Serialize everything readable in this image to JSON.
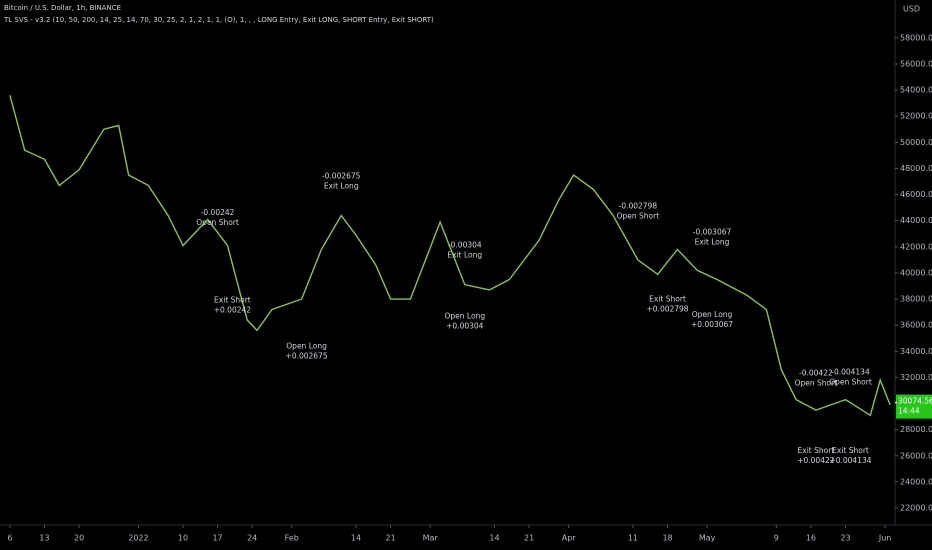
{
  "chart_data": {
    "type": "line",
    "title": "Bitcoin / U.S. Dollar, 1h, BINANCE",
    "subtitle": "TL SVS - v3.2 (10, 50, 200, 14, 25, 14, 70, 30, 25, 2, 1, 2, 1, 1, (O), 1, , , LONG Entry, Exit LONG, SHORT Entry, Exit SHORT)",
    "currency": "USD",
    "color": "#8bc34a",
    "x": [
      0,
      3,
      7,
      10,
      14,
      19,
      22,
      24,
      28,
      32,
      35,
      40,
      44,
      48,
      50,
      53,
      59,
      63,
      67,
      70,
      74,
      77,
      81,
      87,
      92,
      97,
      101,
      107,
      111,
      114,
      118,
      122,
      127,
      131,
      135,
      139,
      143,
      149,
      153,
      156,
      159,
      163,
      169,
      174,
      176,
      178
    ],
    "values": [
      53600,
      49400,
      48700,
      46700,
      47900,
      51000,
      51300,
      47500,
      46700,
      44400,
      42100,
      44100,
      42100,
      36400,
      35600,
      37200,
      38000,
      41800,
      44400,
      42900,
      40600,
      38000,
      38000,
      43900,
      39100,
      38700,
      39500,
      42500,
      45600,
      47500,
      46400,
      44400,
      41000,
      39900,
      41800,
      40200,
      39500,
      38300,
      37200,
      32600,
      30300,
      29500,
      30300,
      29100,
      31800,
      29900
    ],
    "xlim": [
      -2,
      179
    ],
    "xticks": [
      {
        "value": 0,
        "label": "6"
      },
      {
        "value": 7,
        "label": "13"
      },
      {
        "value": 14,
        "label": "20"
      },
      {
        "value": 26,
        "label": "2022"
      },
      {
        "value": 35,
        "label": "10"
      },
      {
        "value": 42,
        "label": "17"
      },
      {
        "value": 49,
        "label": "24"
      },
      {
        "value": 57,
        "label": "Feb"
      },
      {
        "value": 70,
        "label": "14"
      },
      {
        "value": 77,
        "label": "21"
      },
      {
        "value": 85,
        "label": "Mar"
      },
      {
        "value": 98,
        "label": "14"
      },
      {
        "value": 105,
        "label": "21"
      },
      {
        "value": 113,
        "label": "Apr"
      },
      {
        "value": 126,
        "label": "11"
      },
      {
        "value": 133,
        "label": "18"
      },
      {
        "value": 141,
        "label": "May"
      },
      {
        "value": 155,
        "label": "9"
      },
      {
        "value": 162,
        "label": "16"
      },
      {
        "value": 169,
        "label": "23"
      },
      {
        "value": 177,
        "label": "Jun"
      }
    ],
    "ylim": [
      20700,
      60900
    ],
    "yticks": [
      {
        "value": 22000,
        "label": "22000.00"
      },
      {
        "value": 24000,
        "label": "24000.00"
      },
      {
        "value": 26000,
        "label": "26000.00"
      },
      {
        "value": 28000,
        "label": "28000.00"
      },
      {
        "value": 30000,
        "label": "30000.00"
      },
      {
        "value": 32000,
        "label": "32000.00"
      },
      {
        "value": 34000,
        "label": "34000.00"
      },
      {
        "value": 36000,
        "label": "36000.00"
      },
      {
        "value": 38000,
        "label": "38000.00"
      },
      {
        "value": 40000,
        "label": "40000.00"
      },
      {
        "value": 42000,
        "label": "42000.00"
      },
      {
        "value": 44000,
        "label": "44000.00"
      },
      {
        "value": 46000,
        "label": "46000.00"
      },
      {
        "value": 48000,
        "label": "48000.00"
      },
      {
        "value": 50000,
        "label": "50000.00"
      },
      {
        "value": 52000,
        "label": "52000.00"
      },
      {
        "value": 54000,
        "label": "54000.00"
      },
      {
        "value": 56000,
        "label": "56000.00"
      },
      {
        "value": 58000,
        "label": "58000.00"
      }
    ],
    "last_price": {
      "value": 30074.56,
      "label": "30074.56"
    },
    "countdown": "14:44",
    "annotations": [
      {
        "x": 42,
        "y": 44200,
        "lines": [
          "-0.00242",
          "Open Short"
        ]
      },
      {
        "x": 45,
        "y": 37500,
        "lines": [
          "Exit Short",
          "+0.00242"
        ]
      },
      {
        "x": 60,
        "y": 34000,
        "lines": [
          "Open Long",
          "+0.002675"
        ]
      },
      {
        "x": 67,
        "y": 47000,
        "lines": [
          "-0.002675",
          "Exit Long"
        ]
      },
      {
        "x": 92,
        "y": 41700,
        "lines": [
          "-0.00304",
          "Exit Long"
        ]
      },
      {
        "x": 92,
        "y": 36300,
        "lines": [
          "Open Long",
          "+0.00304"
        ]
      },
      {
        "x": 127,
        "y": 44700,
        "lines": [
          "-0.002798",
          "Open Short"
        ]
      },
      {
        "x": 133,
        "y": 37600,
        "lines": [
          "Exit Short",
          "+0.002798"
        ]
      },
      {
        "x": 142,
        "y": 42700,
        "lines": [
          "-0.003067",
          "Exit Long"
        ]
      },
      {
        "x": 142,
        "y": 36400,
        "lines": [
          "Open Long",
          "+0.003067"
        ]
      },
      {
        "x": 163,
        "y": 31900,
        "lines": [
          "-0.00422",
          "Open Short"
        ]
      },
      {
        "x": 170,
        "y": 32000,
        "lines": [
          "-0.004134",
          "Open Short"
        ]
      },
      {
        "x": 163,
        "y": 26000,
        "lines": [
          "Exit Short",
          "+0.00422"
        ]
      },
      {
        "x": 170,
        "y": 26000,
        "lines": [
          "Exit Short",
          "+0.004134"
        ]
      }
    ]
  }
}
